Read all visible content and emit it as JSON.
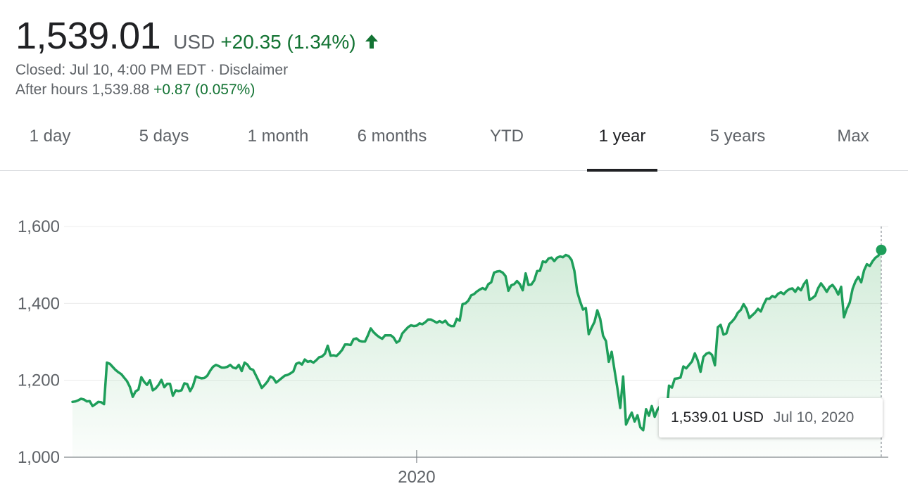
{
  "quote": {
    "price": "1,539.01",
    "currency": "USD",
    "change": "+20.35 (1.34%)",
    "closed_status": "Closed: Jul 10, 4:00 PM EDT",
    "separator": "·",
    "disclaimer": "Disclaimer",
    "after_hours_label": "After hours 1,539.88",
    "after_hours_change": "+0.87 (0.057%)",
    "direction_icon": "arrow-up-icon",
    "color_positive": "#137333"
  },
  "tabs": [
    {
      "label": "1 day"
    },
    {
      "label": "5 days"
    },
    {
      "label": "1 month"
    },
    {
      "label": "6 months"
    },
    {
      "label": "YTD"
    },
    {
      "label": "1 year",
      "active": true
    },
    {
      "label": "5 years"
    },
    {
      "label": "Max"
    }
  ],
  "tooltip": {
    "price": "1,539.01 USD",
    "date": "Jul 10, 2020"
  },
  "chart_data": {
    "type": "area",
    "x_labels": [
      "2020"
    ],
    "y_ticks": [
      "1,600",
      "1,400",
      "1,200",
      "1,000"
    ],
    "y_tick_values": [
      1600,
      1400,
      1200,
      1000
    ],
    "ylim": [
      1000,
      1600
    ],
    "x_tick_index": 120,
    "grid": true,
    "line_color": "#1e9e5a",
    "fill_color": "#34a853",
    "series": [
      {
        "values": [
          1144,
          1145,
          1148,
          1152,
          1150,
          1145,
          1146,
          1133,
          1138,
          1144,
          1143,
          1138,
          1246,
          1243,
          1235,
          1227,
          1221,
          1216,
          1207,
          1198,
          1183,
          1157,
          1171,
          1176,
          1208,
          1196,
          1188,
          1200,
          1174,
          1179,
          1188,
          1201,
          1182,
          1191,
          1191,
          1160,
          1174,
          1172,
          1174,
          1192,
          1190,
          1172,
          1185,
          1210,
          1207,
          1205,
          1206,
          1212,
          1225,
          1235,
          1240,
          1237,
          1233,
          1233,
          1235,
          1240,
          1233,
          1231,
          1240,
          1224,
          1246,
          1241,
          1230,
          1227,
          1212,
          1197,
          1180,
          1188,
          1197,
          1210,
          1206,
          1194,
          1200,
          1206,
          1212,
          1214,
          1218,
          1223,
          1243,
          1246,
          1241,
          1254,
          1248,
          1250,
          1246,
          1252,
          1260,
          1262,
          1269,
          1290,
          1264,
          1265,
          1263,
          1270,
          1279,
          1293,
          1293,
          1292,
          1307,
          1309,
          1303,
          1301,
          1301,
          1317,
          1335,
          1325,
          1318,
          1312,
          1308,
          1317,
          1317,
          1317,
          1311,
          1298,
          1303,
          1322,
          1330,
          1338,
          1343,
          1341,
          1342,
          1348,
          1346,
          1351,
          1358,
          1358,
          1354,
          1350,
          1354,
          1350,
          1355,
          1345,
          1341,
          1341,
          1360,
          1355,
          1398,
          1400,
          1407,
          1421,
          1424,
          1431,
          1436,
          1440,
          1436,
          1450,
          1455,
          1480,
          1483,
          1484,
          1480,
          1471,
          1433,
          1447,
          1450,
          1458,
          1450,
          1434,
          1478,
          1448,
          1449,
          1460,
          1484,
          1485,
          1509,
          1507,
          1517,
          1519,
          1510,
          1519,
          1522,
          1520,
          1526,
          1523,
          1513,
          1485,
          1430,
          1405,
          1384,
          1388,
          1320,
          1337,
          1352,
          1382,
          1360,
          1316,
          1302,
          1248,
          1274,
          1226,
          1180,
          1128,
          1210,
          1085,
          1101,
          1116,
          1093,
          1109,
          1078,
          1070,
          1125,
          1108,
          1133,
          1105,
          1124,
          1134,
          1149,
          1106,
          1186,
          1181,
          1204,
          1205,
          1207,
          1236,
          1231,
          1240,
          1249,
          1270,
          1252,
          1222,
          1261,
          1269,
          1272,
          1266,
          1239,
          1338,
          1344,
          1319,
          1322,
          1346,
          1353,
          1362,
          1376,
          1383,
          1398,
          1386,
          1362,
          1369,
          1376,
          1386,
          1379,
          1397,
          1412,
          1412,
          1419,
          1416,
          1425,
          1429,
          1424,
          1432,
          1437,
          1439,
          1430,
          1441,
          1434,
          1450,
          1460,
          1409,
          1414,
          1420,
          1440,
          1452,
          1442,
          1430,
          1443,
          1448,
          1438,
          1423,
          1443,
          1364,
          1386,
          1402,
          1438,
          1457,
          1469,
          1455,
          1486,
          1502,
          1497,
          1510,
          1519,
          1524,
          1539
        ]
      }
    ],
    "last_value": 1539.01,
    "last_date": "Jul 10, 2020"
  }
}
